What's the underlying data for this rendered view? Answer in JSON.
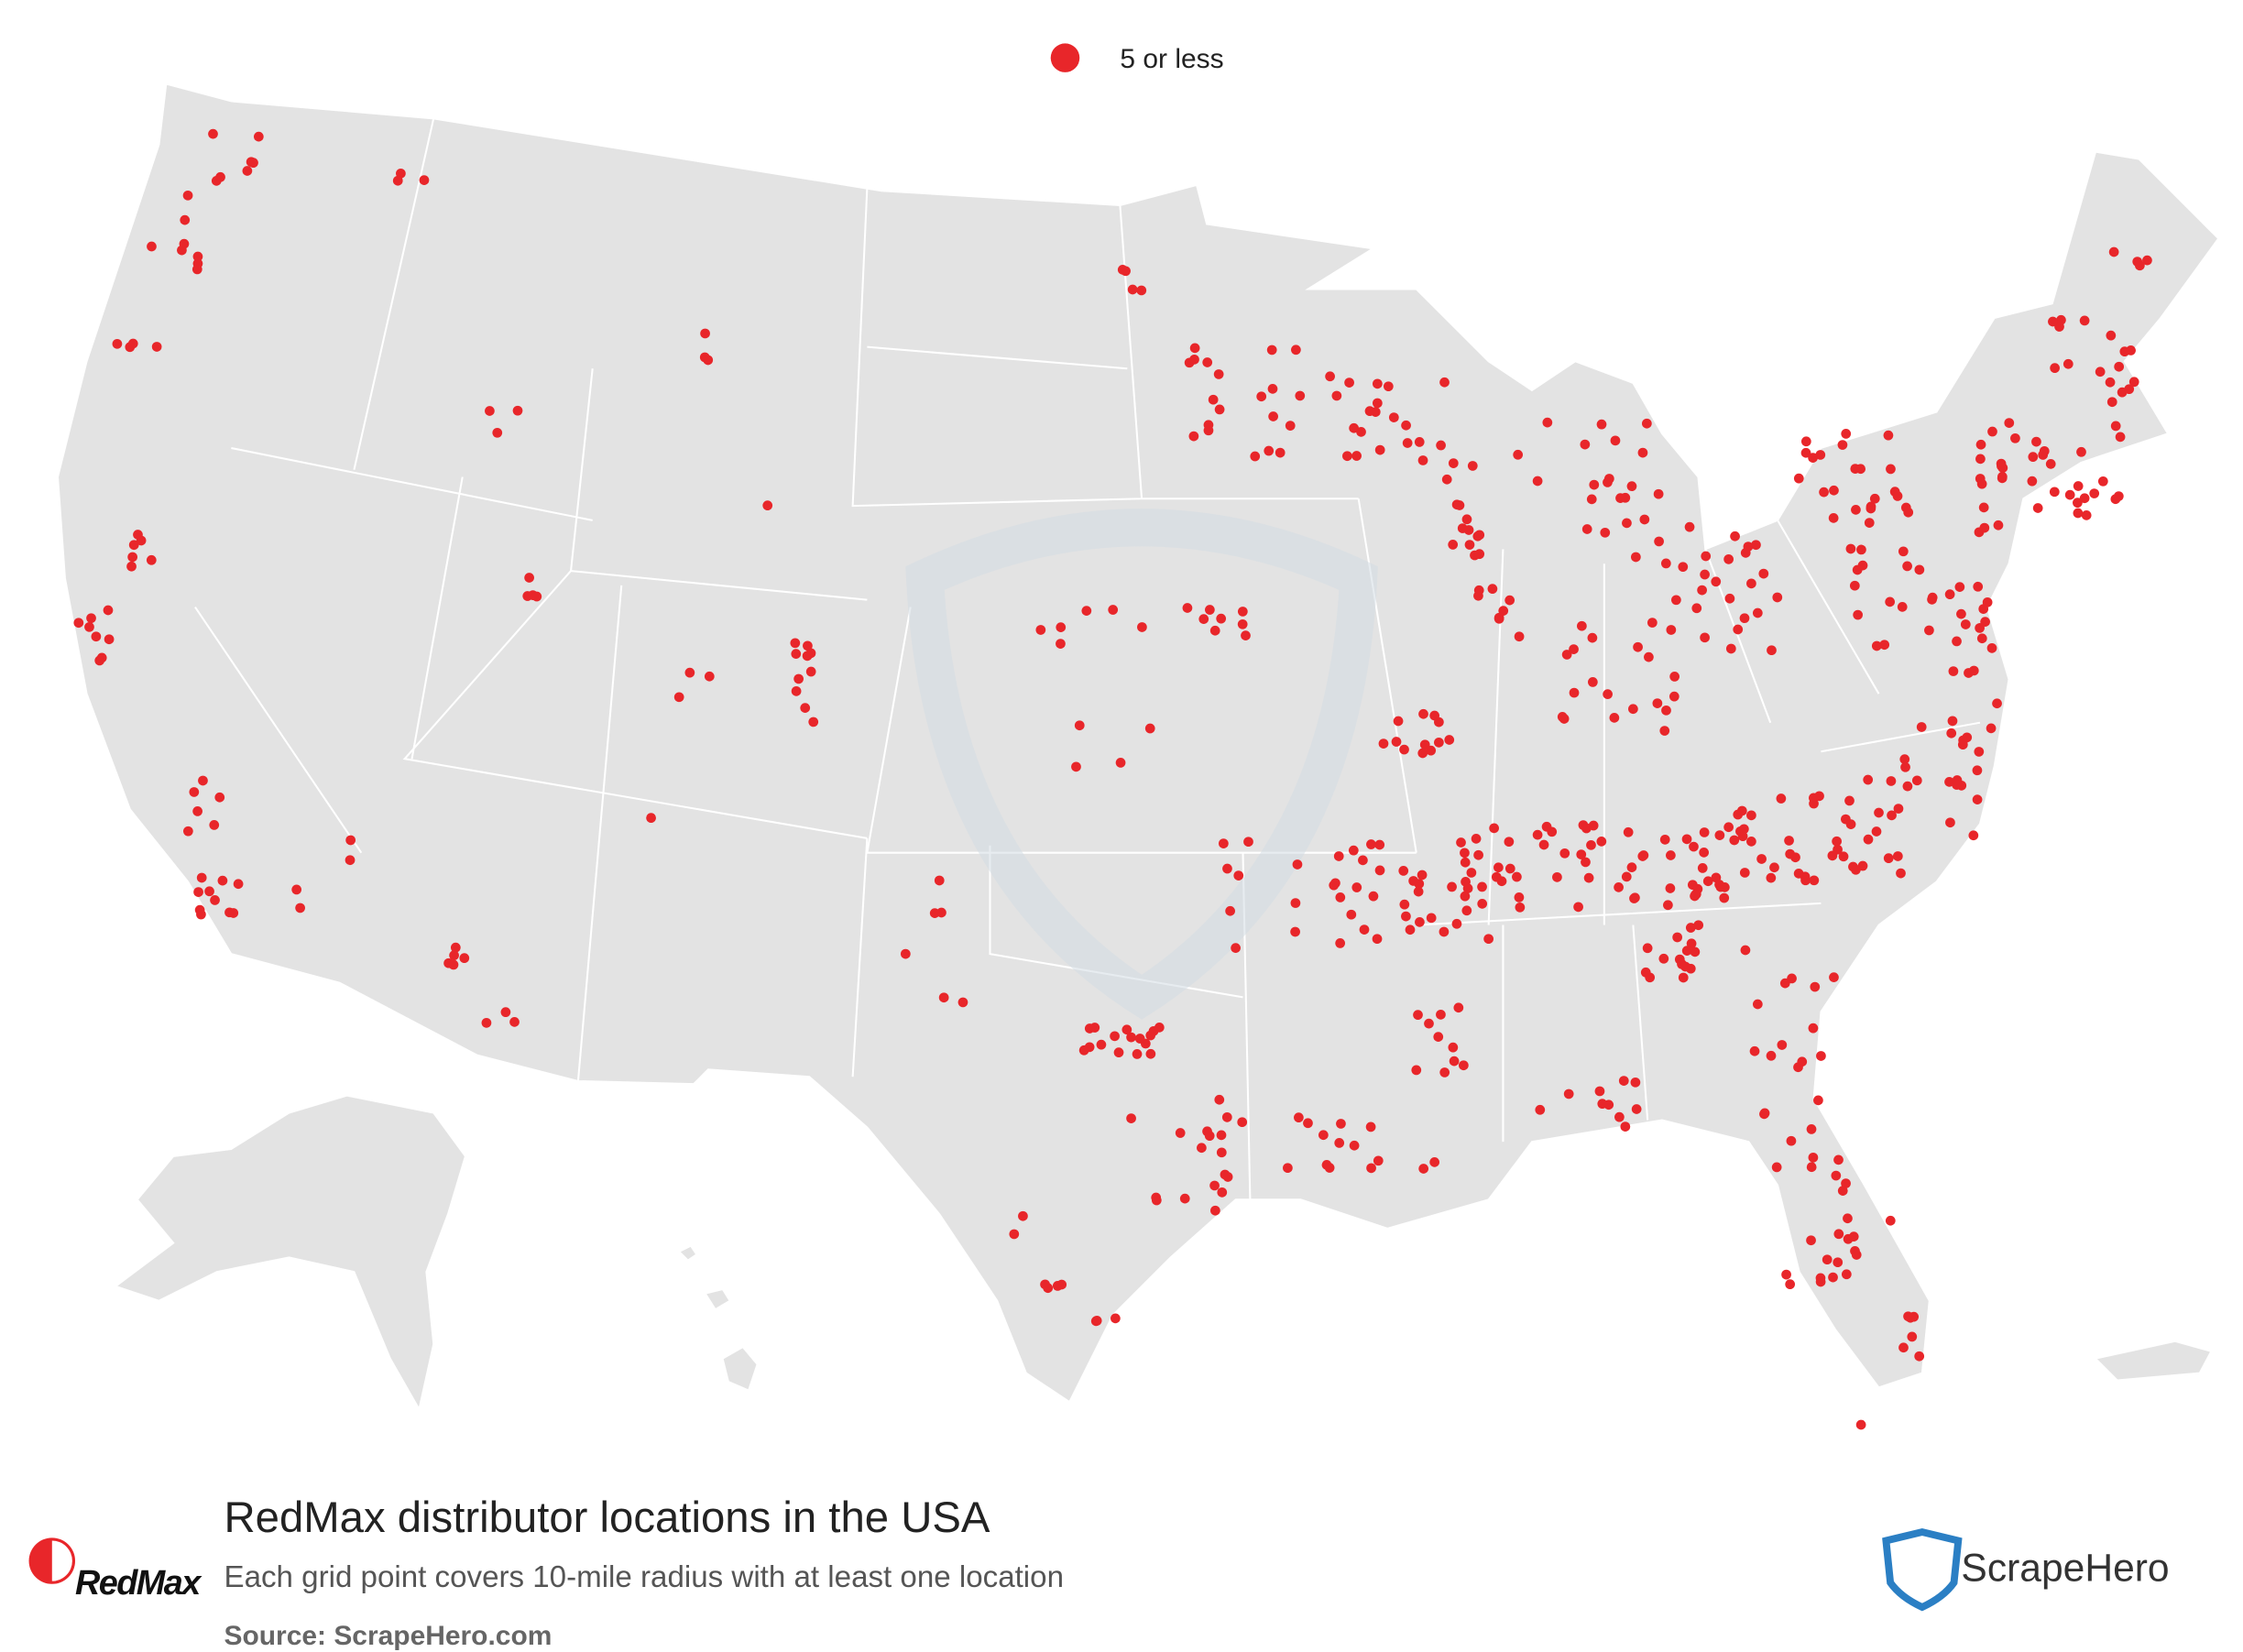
{
  "legend": {
    "label": "5 or less",
    "color": "#e8262a"
  },
  "title": "RedMax distributor locations in the USA",
  "subtitle": "Each grid point covers 10-mile radius with at least one location",
  "source": "Source: ScrapeHero.com",
  "logos": {
    "brand": "RedMax",
    "publisher": "ScrapeHero"
  }
}
